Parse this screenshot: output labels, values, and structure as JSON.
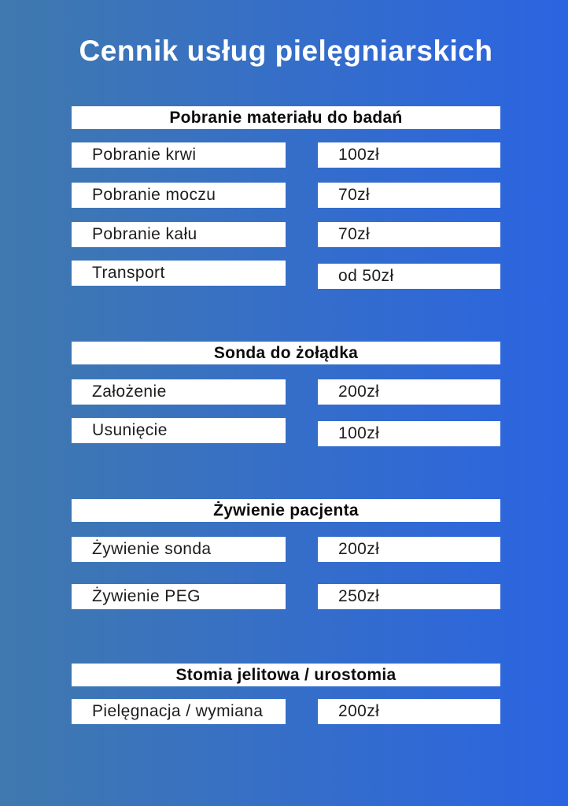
{
  "page": {
    "title": "Cennik usług pielęgniarskich"
  },
  "theme": {
    "bg_gradient_left": "#4079ae",
    "bg_gradient_right": "#2b64e1",
    "box_background": "#ffffff",
    "header_text_color": "#0c0c0c",
    "row_text_color": "#1d1d1d",
    "title_text_color": "#ffffff"
  },
  "sections": [
    {
      "header": "Pobranie materiału do badań",
      "rows": [
        {
          "label": "Pobranie krwi",
          "price": "100zł"
        },
        {
          "label": "Pobranie moczu",
          "price": "70zł"
        },
        {
          "label": "Pobranie kału",
          "price": "70zł"
        },
        {
          "label": "Transport",
          "price": "od 50zł"
        }
      ]
    },
    {
      "header": "Sonda do żołądka",
      "rows": [
        {
          "label": "Założenie",
          "price": "200zł"
        },
        {
          "label": "Usunięcie",
          "price": "100zł"
        }
      ]
    },
    {
      "header": "Żywienie pacjenta",
      "rows": [
        {
          "label": "Żywienie sonda",
          "price": "200zł"
        },
        {
          "label": "Żywienie PEG",
          "price": "250zł"
        }
      ]
    },
    {
      "header": "Stomia jelitowa / urostomia",
      "rows": [
        {
          "label": "Pielęgnacja / wymiana",
          "price": "200zł"
        }
      ]
    }
  ]
}
